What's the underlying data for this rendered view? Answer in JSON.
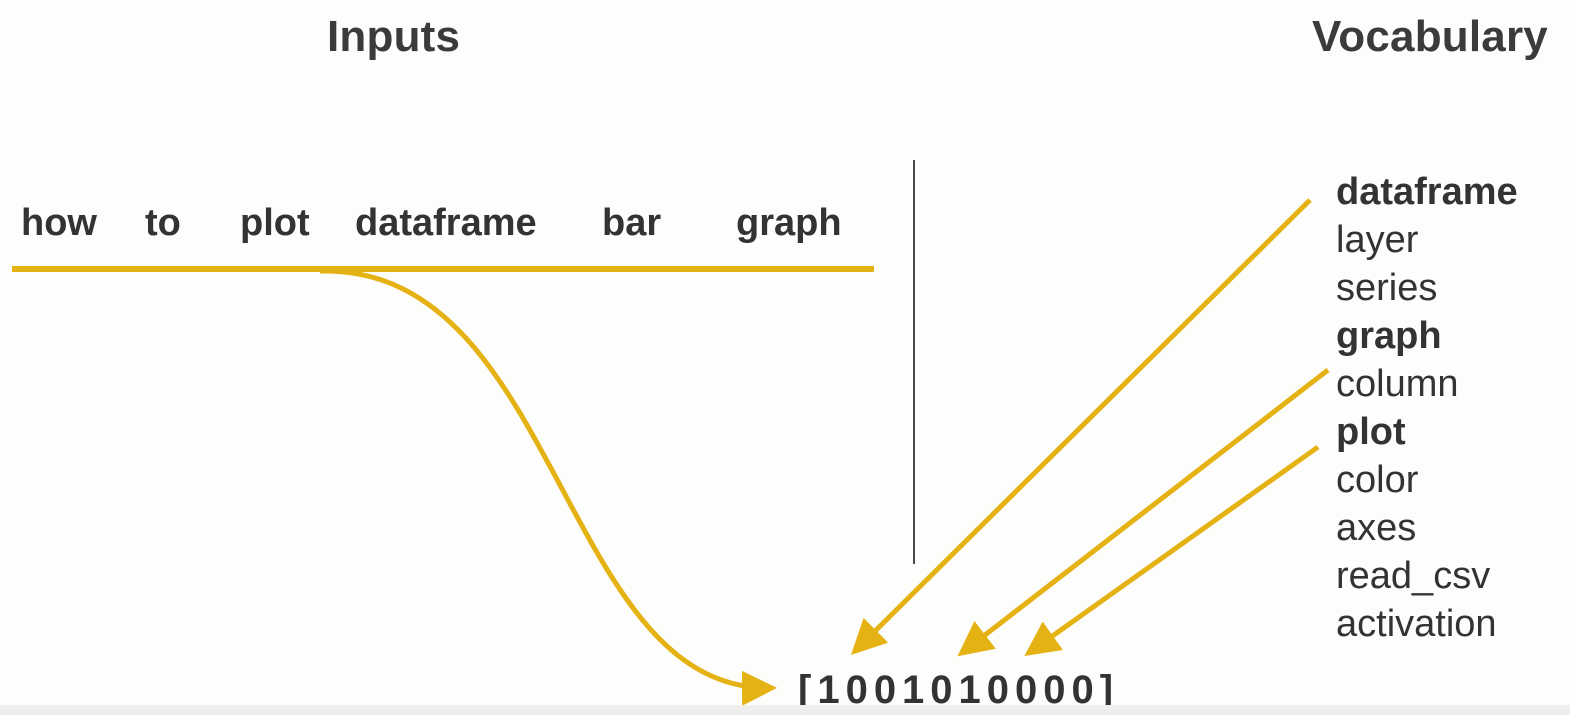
{
  "headings": {
    "inputs": "Inputs",
    "vocabulary": "Vocabulary"
  },
  "input_words": [
    "how",
    "to",
    "plot",
    "dataframe",
    "bar",
    "graph"
  ],
  "vocabulary": [
    {
      "word": "dataframe",
      "bold": true
    },
    {
      "word": "layer",
      "bold": false
    },
    {
      "word": "series",
      "bold": false
    },
    {
      "word": "graph",
      "bold": true
    },
    {
      "word": "column",
      "bold": false
    },
    {
      "word": "plot",
      "bold": true
    },
    {
      "word": "color",
      "bold": false
    },
    {
      "word": "axes",
      "bold": false
    },
    {
      "word": "read_csv",
      "bold": false
    },
    {
      "word": "activation",
      "bold": false
    }
  ],
  "vector": "[1001010000]",
  "colors": {
    "accent": "#e5b214",
    "text": "#333333",
    "divider": "#4a4a4a"
  }
}
